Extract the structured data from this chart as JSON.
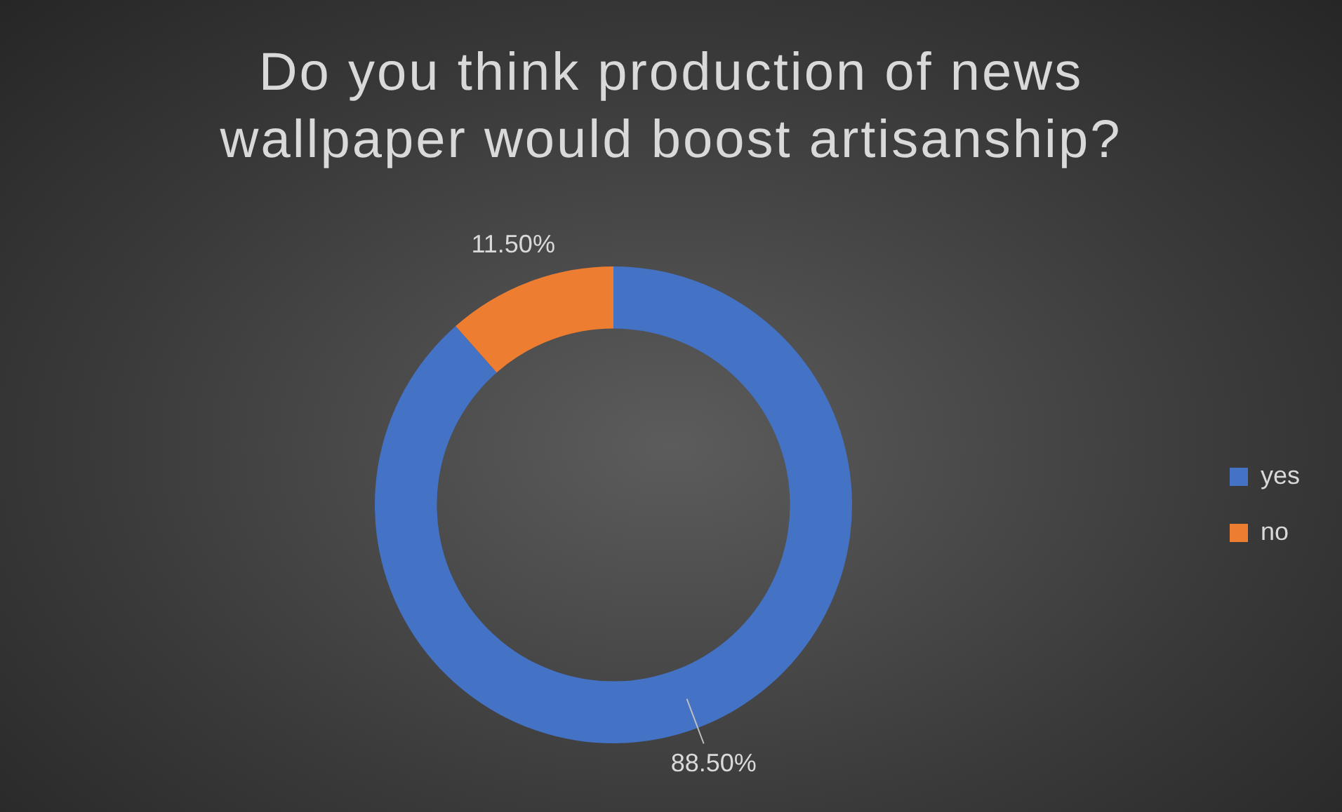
{
  "chart_data": {
    "type": "donut",
    "title": "Do you think production of news wallpaper would boost artisanship?",
    "categories": [
      "yes",
      "no"
    ],
    "values": [
      88.5,
      11.5
    ],
    "colors": [
      "#4472c4",
      "#ed7d31"
    ],
    "value_labels": [
      "88.50%",
      "11.50%"
    ],
    "legend": "right"
  }
}
